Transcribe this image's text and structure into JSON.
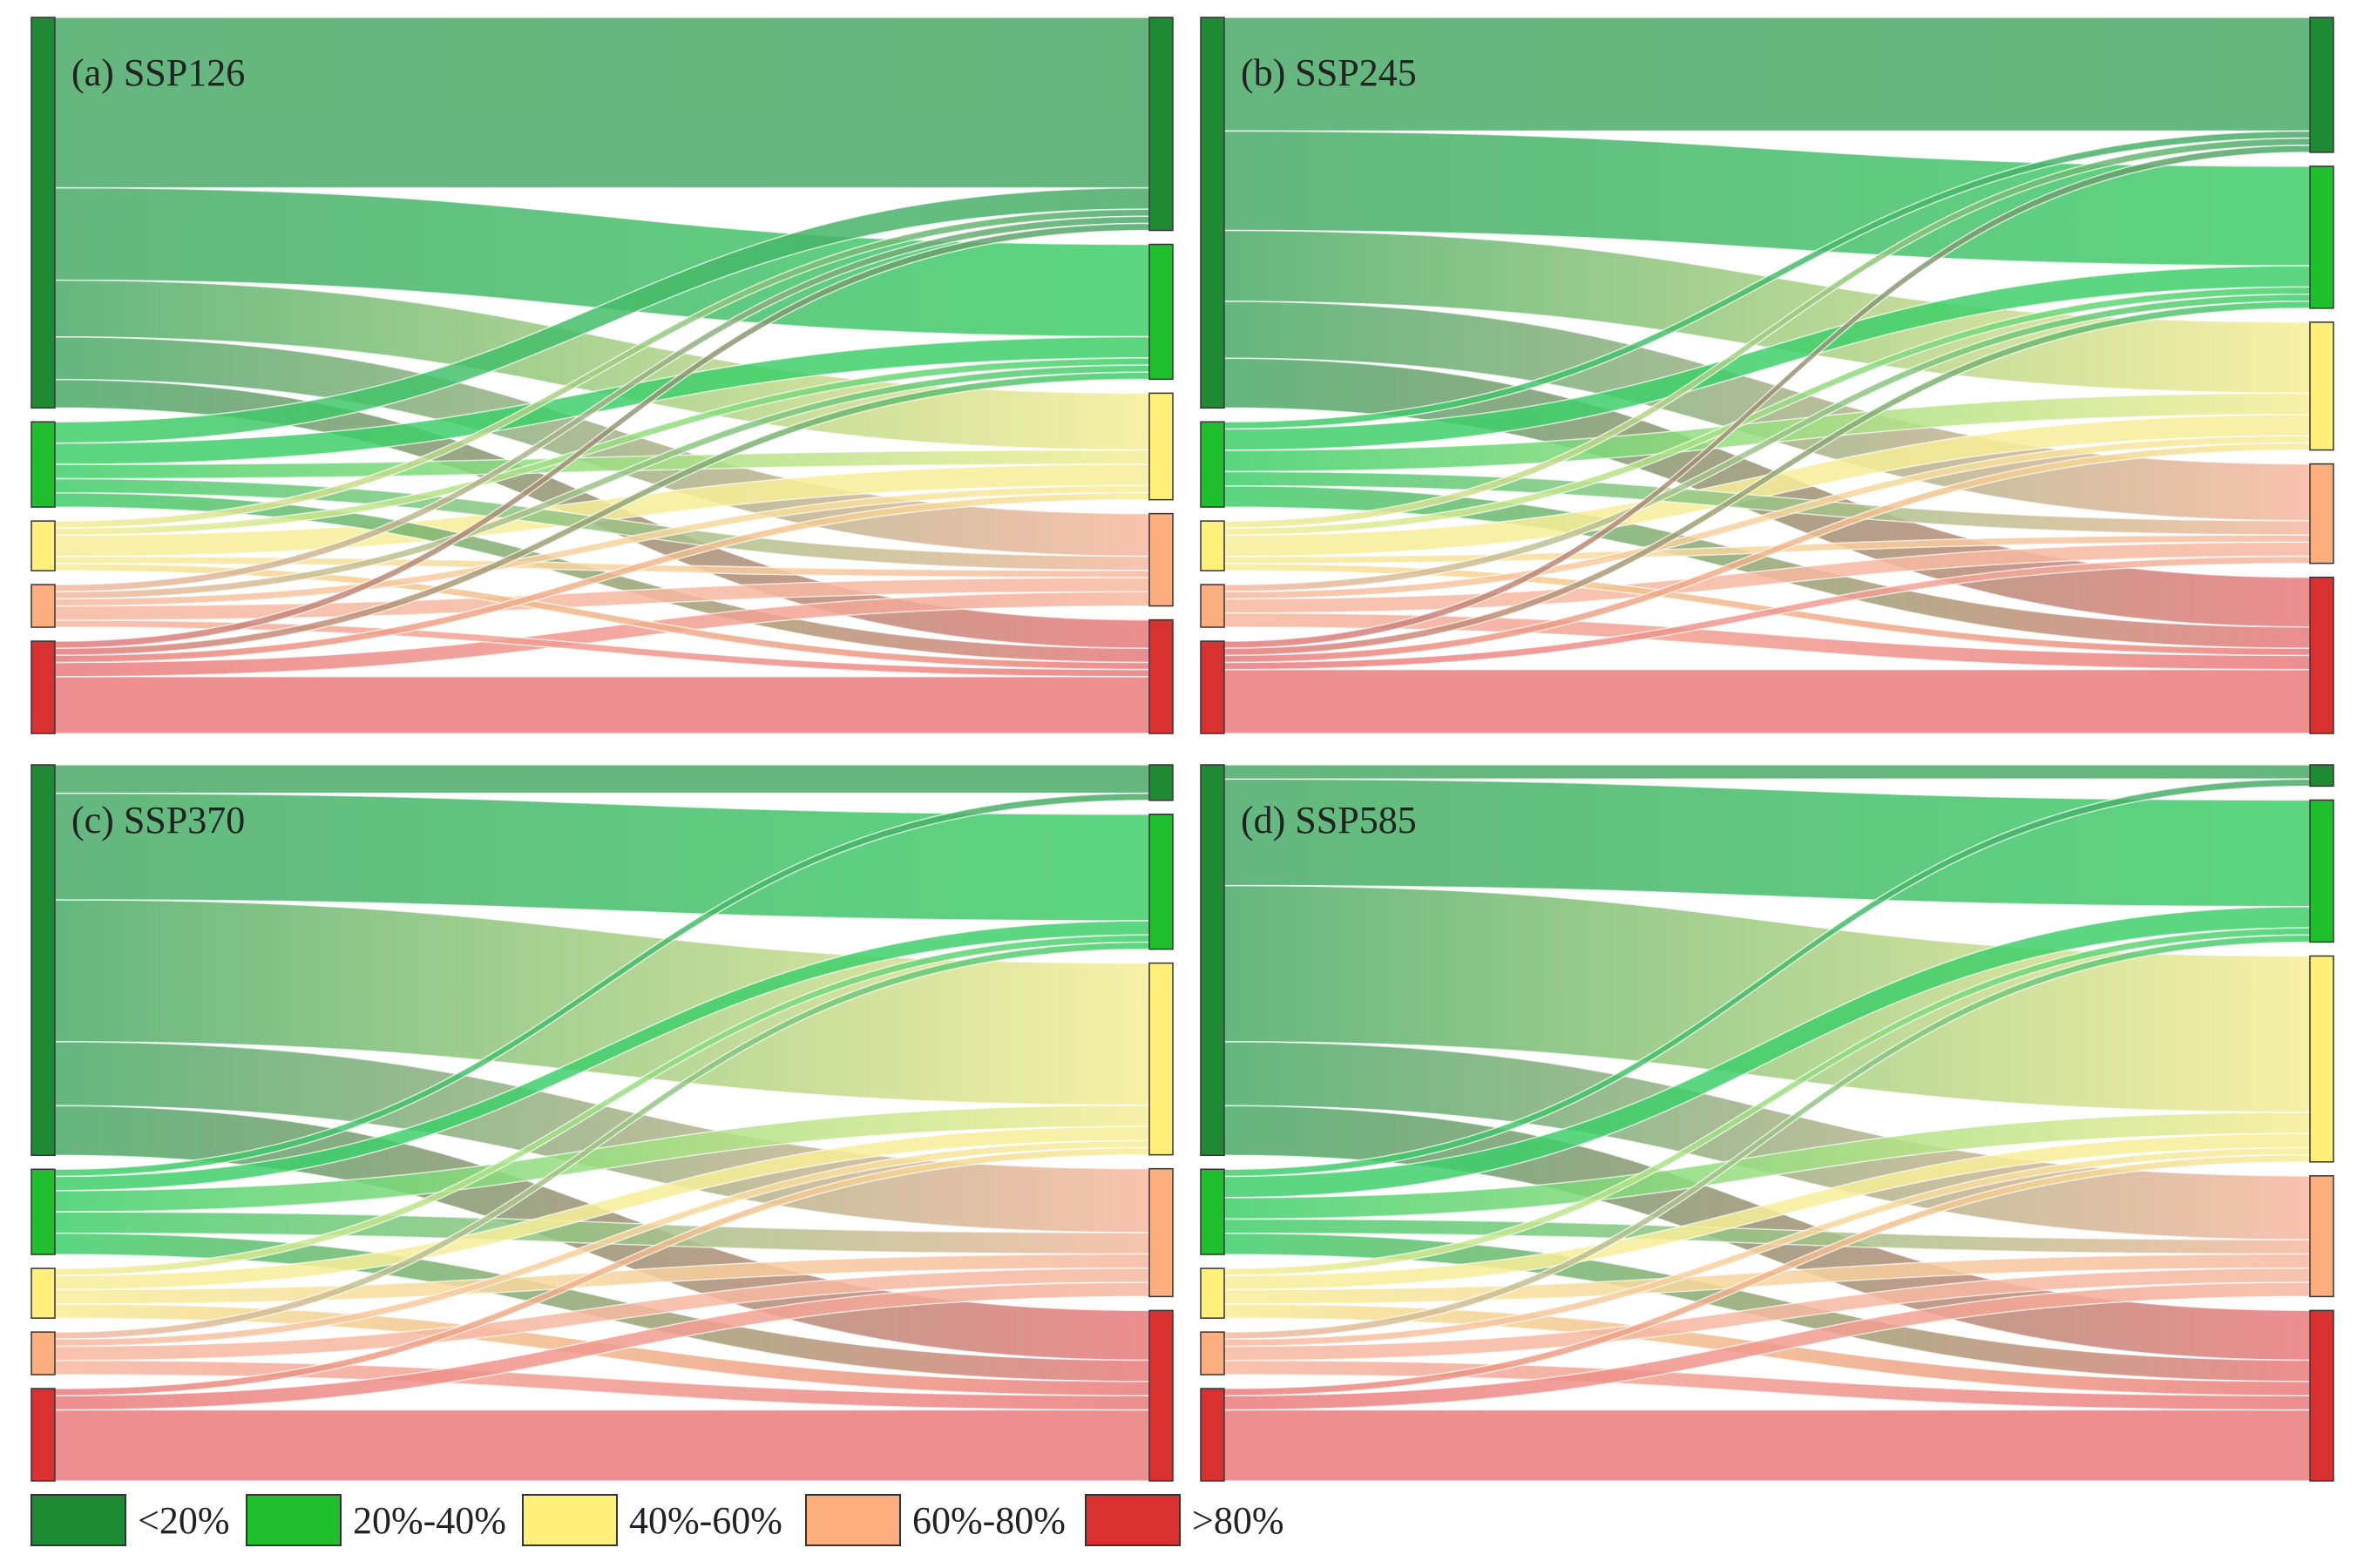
{
  "chart_data": {
    "type": "sankey",
    "categories": [
      "<20%",
      "20%-40%",
      "40%-60%",
      "60%-80%",
      ">80%"
    ],
    "colors": [
      "#1e8a33",
      "#1fbf2d",
      "#fff07a",
      "#fcae7e",
      "#d93030"
    ],
    "flow_colors": [
      "#4aaa68",
      "#3fcf6a",
      "#f7ee98",
      "#f7b8a0",
      "#ea7a7c"
    ],
    "legend": {
      "position": "bottom-left",
      "items": [
        "<20%",
        "20%-40%",
        "40%-60%",
        "60%-80%",
        ">80%"
      ]
    },
    "panels": [
      {
        "title": "(a) SSP126",
        "source_totals": [
          55,
          12,
          7,
          6,
          13
        ],
        "flows": [
          [
            24,
            13,
            8,
            6,
            4
          ],
          [
            3,
            3,
            2,
            2,
            2
          ],
          [
            1,
            1,
            3,
            1,
            1
          ],
          [
            1,
            1,
            1,
            2,
            1
          ],
          [
            1,
            1,
            1,
            2,
            8
          ]
        ]
      },
      {
        "title": "(b) SSP245",
        "source_totals": [
          55,
          12,
          7,
          6,
          13
        ],
        "flows": [
          [
            16,
            14,
            10,
            8,
            7
          ],
          [
            1,
            3,
            3,
            2,
            3
          ],
          [
            1,
            1,
            3,
            1,
            1
          ],
          [
            0,
            1,
            1,
            2,
            2
          ],
          [
            1,
            1,
            1,
            1,
            9
          ]
        ]
      },
      {
        "title": "(c) SSP370",
        "source_totals": [
          55,
          12,
          7,
          6,
          13
        ],
        "flows": [
          [
            4,
            15,
            20,
            9,
            7
          ],
          [
            1,
            2,
            3,
            3,
            3
          ],
          [
            0,
            1,
            2,
            2,
            2
          ],
          [
            0,
            1,
            1,
            2,
            2
          ],
          [
            0,
            0,
            1,
            2,
            10
          ]
        ]
      },
      {
        "title": "(d) SSP585",
        "source_totals": [
          55,
          12,
          7,
          6,
          13
        ],
        "flows": [
          [
            2,
            15,
            22,
            9,
            7
          ],
          [
            1,
            3,
            3,
            2,
            3
          ],
          [
            0,
            1,
            2,
            2,
            2
          ],
          [
            0,
            1,
            1,
            2,
            2
          ],
          [
            0,
            0,
            1,
            2,
            10
          ]
        ]
      }
    ]
  }
}
